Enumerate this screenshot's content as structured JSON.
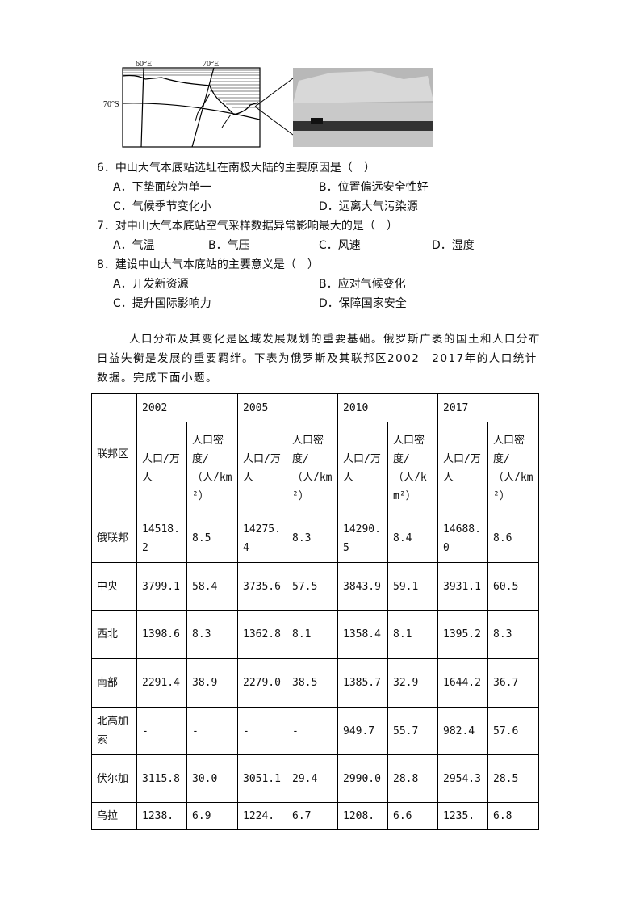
{
  "figure": {
    "map_labels": {
      "lon1": "60°E",
      "lon2": "70°E",
      "lat": "70°S"
    },
    "photo": "antarctic-station-photo"
  },
  "questions": [
    {
      "stem": "6．中山大气本底站选址在南极大陆的主要原因是（　）",
      "options": [
        "A．下垫面较为单一",
        "B．位置偏远安全性好",
        "C．气候季节变化小",
        "D．远离大气污染源"
      ]
    },
    {
      "stem": "7．对中山大气本底站空气采样数据异常影响最大的是（　）",
      "options": [
        "A．气温",
        "B．气压",
        "C．风速",
        "D．湿度"
      ]
    },
    {
      "stem": "8．建设中山大气本底站的主要意义是（　）",
      "options": [
        "A．开发新资源",
        "B．应对气候变化",
        "C．提升国际影响力",
        "D．保障国家安全"
      ]
    }
  ],
  "passage": "人口分布及其变化是区域发展规划的重要基础。俄罗斯广袤的国土和人口分布日益失衡是发展的重要羁绊。下表为俄罗斯及其联邦区2002—2017年的人口统计数据。完成下面小题。",
  "table": {
    "region_header": "联邦区",
    "years": [
      "2002",
      "2005",
      "2010",
      "2017"
    ],
    "sub_headers": [
      "人口/万人",
      "人口密度/（人/km²）"
    ],
    "rows": [
      {
        "region": "俄联邦",
        "values": [
          "14518.2",
          "8.5",
          "14275.4",
          "8.3",
          "14290.5",
          "8.4",
          "14688.0",
          "8.6"
        ]
      },
      {
        "region": "中央",
        "values": [
          "3799.1",
          "58.4",
          "3735.6",
          "57.5",
          "3843.9",
          "59.1",
          "3931.1",
          "60.5"
        ]
      },
      {
        "region": "西北",
        "values": [
          "1398.6",
          "8.3",
          "1362.8",
          "8.1",
          "1358.4",
          "8.1",
          "1395.2",
          "8.3"
        ]
      },
      {
        "region": "南部",
        "values": [
          "2291.4",
          "38.9",
          "2279.0",
          "38.5",
          "1385.7",
          "32.9",
          "1644.2",
          "36.7"
        ]
      },
      {
        "region": "北高加索",
        "values": [
          "-",
          "-",
          "-",
          "-",
          "949.7",
          "55.7",
          "982.4",
          "57.6"
        ]
      },
      {
        "region": "伏尔加",
        "values": [
          "3115.8",
          "30.0",
          "3051.1",
          "29.4",
          "2990.0",
          "28.8",
          "2954.3",
          "28.5"
        ]
      },
      {
        "region": "乌拉",
        "values": [
          "1238.",
          "6.9",
          "1224.",
          "6.7",
          "1208.",
          "6.6",
          "1235.",
          "6.8"
        ]
      }
    ]
  }
}
